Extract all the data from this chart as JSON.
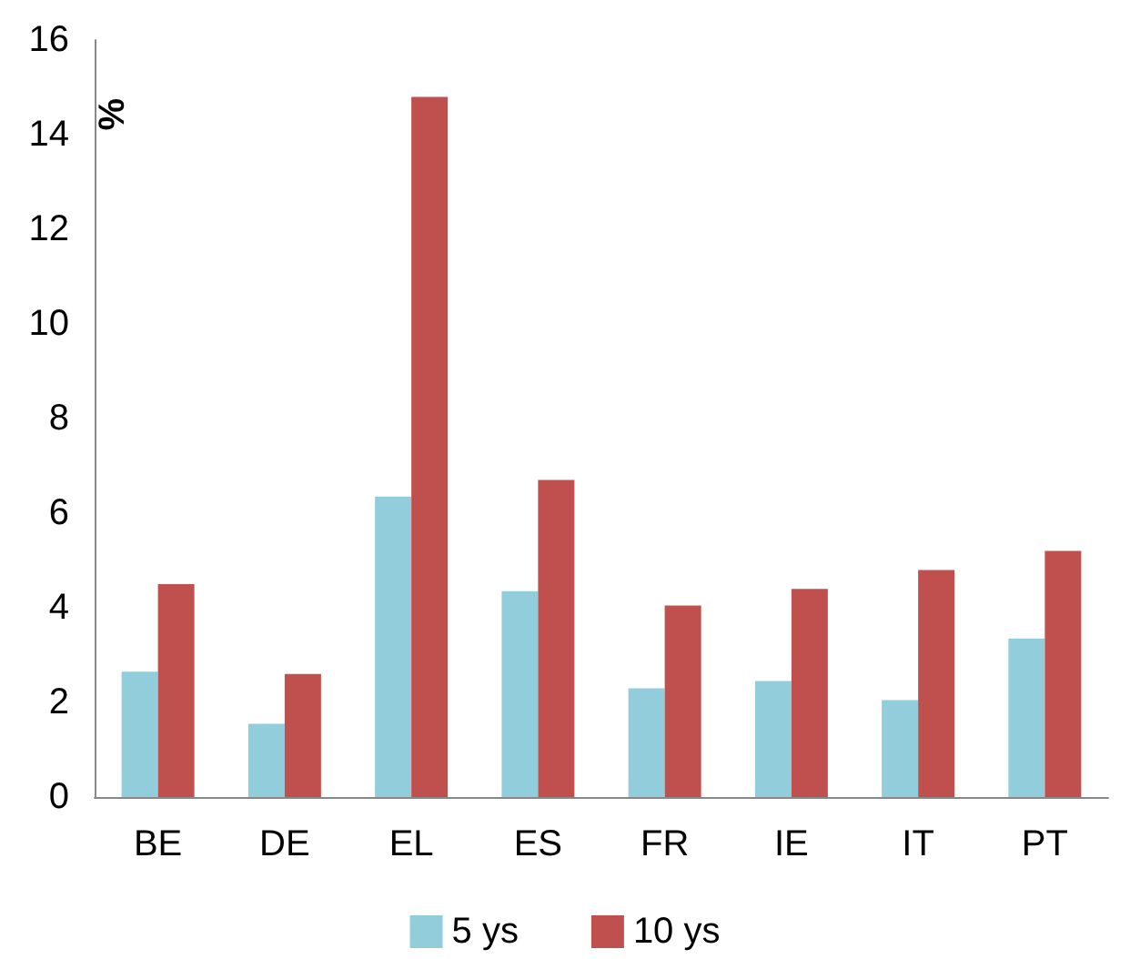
{
  "chart_data": {
    "type": "bar",
    "ylabel": "%",
    "categories": [
      "BE",
      "DE",
      "EL",
      "ES",
      "FR",
      "IE",
      "IT",
      "PT"
    ],
    "series": [
      {
        "name": "5 ys",
        "color": "#92cddc",
        "values": [
          2.65,
          1.55,
          6.35,
          4.35,
          2.3,
          2.45,
          2.05,
          3.35
        ]
      },
      {
        "name": "10 ys",
        "color": "#c0504d",
        "values": [
          4.5,
          2.6,
          14.8,
          6.7,
          4.05,
          4.4,
          4.8,
          5.2
        ]
      }
    ],
    "ylim": [
      0,
      16
    ],
    "yticks": [
      0,
      2,
      4,
      6,
      8,
      10,
      12,
      14,
      16
    ],
    "grid": false,
    "legend": "bottom"
  }
}
